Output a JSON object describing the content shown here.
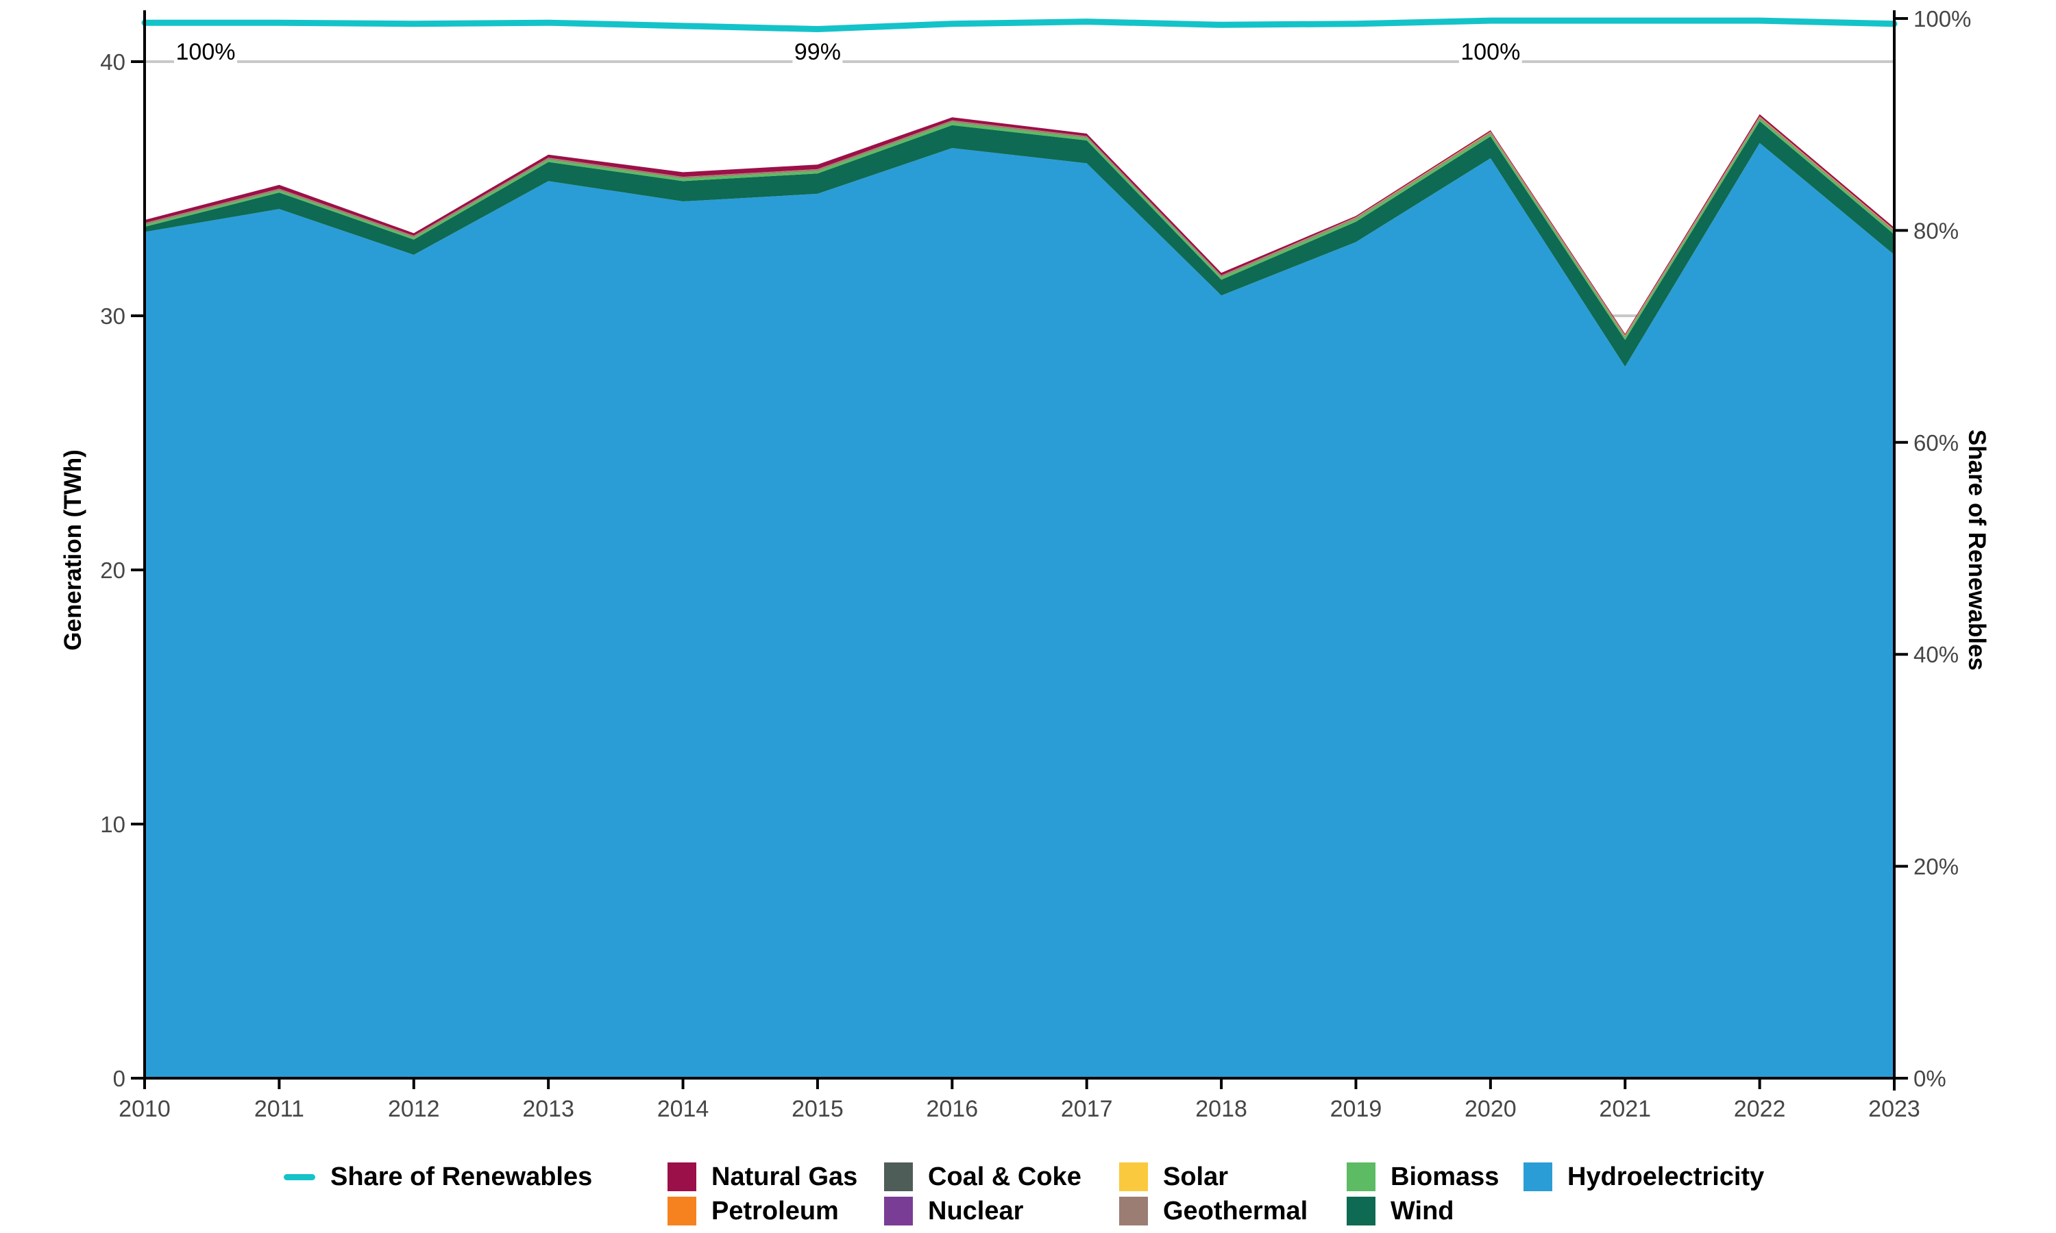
{
  "page": {
    "background": "#FFFFFF"
  },
  "axes": {
    "left_title": "Generation (TWh)",
    "right_title": "Share of Renewables",
    "left_tick_values": [
      0,
      10,
      20,
      30,
      40
    ],
    "left_tick_labels": [
      "0",
      "10",
      "20",
      "30",
      "40"
    ],
    "right_tick_values": [
      0,
      20,
      40,
      60,
      80,
      100
    ],
    "right_tick_labels": [
      "0%",
      "20%",
      "40%",
      "60%",
      "80%",
      "100%"
    ],
    "x_tick_labels": [
      "2010",
      "2011",
      "2012",
      "2013",
      "2014",
      "2015",
      "2016",
      "2017",
      "2018",
      "2019",
      "2020",
      "2021",
      "2022",
      "2023"
    ]
  },
  "colors": {
    "grid": "#C8C8C8",
    "axis": "#000000",
    "tick_text": "#464646",
    "annotation_text": "#000000",
    "annotation_bg": "#FFFFFF"
  },
  "chart_data": {
    "type": "area",
    "stacked": true,
    "title": "",
    "xlabel": "",
    "ylabel": "Generation (TWh)",
    "ylabel_right": "Share of Renewables",
    "ylim": [
      0,
      40
    ],
    "ylim_right": [
      0,
      100
    ],
    "grid": "horizontal",
    "legend_position": "bottom",
    "x": [
      2010,
      2011,
      2012,
      2013,
      2014,
      2015,
      2016,
      2017,
      2018,
      2019,
      2020,
      2021,
      2022,
      2023
    ],
    "series": [
      {
        "name": "Hydroelectricity",
        "color": "#2A9DD6",
        "values": [
          33.3,
          34.2,
          32.4,
          35.3,
          34.5,
          34.8,
          36.6,
          36.0,
          30.8,
          32.9,
          36.2,
          28.0,
          36.8,
          32.4
        ]
      },
      {
        "name": "Wind",
        "color": "#0E6A52",
        "values": [
          0.2,
          0.65,
          0.6,
          0.75,
          0.8,
          0.8,
          0.9,
          0.9,
          0.62,
          0.8,
          0.86,
          1.05,
          0.86,
          0.8
        ]
      },
      {
        "name": "Biomass",
        "color": "#5CBB63",
        "values": [
          0.08,
          0.08,
          0.08,
          0.1,
          0.1,
          0.1,
          0.12,
          0.1,
          0.1,
          0.1,
          0.1,
          0.1,
          0.1,
          0.1
        ]
      },
      {
        "name": "Geothermal",
        "color": "#9B7D74",
        "values": [
          0.05,
          0.05,
          0.05,
          0.05,
          0.05,
          0.05,
          0.05,
          0.05,
          0.05,
          0.05,
          0.05,
          0.05,
          0.05,
          0.05
        ]
      },
      {
        "name": "Solar",
        "color": "#FBC93D",
        "values": [
          0,
          0,
          0,
          0,
          0,
          0,
          0,
          0,
          0,
          0.01,
          0.01,
          0.01,
          0.01,
          0.01
        ]
      },
      {
        "name": "Nuclear",
        "color": "#7A3D96",
        "values": [
          0,
          0,
          0,
          0,
          0,
          0,
          0,
          0,
          0,
          0,
          0,
          0,
          0,
          0
        ]
      },
      {
        "name": "Coal & Coke",
        "color": "#4F5D58",
        "values": [
          0.01,
          0.01,
          0.01,
          0.01,
          0.01,
          0.01,
          0.01,
          0.01,
          0.01,
          0.01,
          0.01,
          0.01,
          0.01,
          0.01
        ]
      },
      {
        "name": "Petroleum",
        "color": "#F6821F",
        "values": [
          0.01,
          0.01,
          0.01,
          0.01,
          0.01,
          0.01,
          0.01,
          0.01,
          0.01,
          0.01,
          0.02,
          0.02,
          0.02,
          0.02
        ]
      },
      {
        "name": "Natural Gas",
        "color": "#9B1048",
        "values": [
          0.12,
          0.15,
          0.1,
          0.12,
          0.18,
          0.18,
          0.12,
          0.1,
          0.1,
          0.05,
          0.05,
          0.05,
          0.08,
          0.08
        ]
      }
    ],
    "line": {
      "name": "Share of Renewables",
      "color": "#14C3C9",
      "values": [
        99.6,
        99.6,
        99.5,
        99.6,
        99.3,
        99.0,
        99.5,
        99.7,
        99.4,
        99.5,
        99.8,
        99.8,
        99.8,
        99.5
      ]
    },
    "annotations": [
      {
        "x": 2010,
        "text": "100%"
      },
      {
        "x": 2015,
        "text": "99%"
      },
      {
        "x": 2020,
        "text": "100%"
      }
    ]
  },
  "legend": {
    "columns": [
      {
        "entries": [
          {
            "label": "Share of Renewables",
            "swatch": "line",
            "color": "#14C3C9"
          }
        ]
      },
      {
        "entries": [
          {
            "label": "Natural Gas",
            "swatch": "box",
            "color": "#9B1048"
          },
          {
            "label": "Petroleum",
            "swatch": "box",
            "color": "#F6821F"
          }
        ]
      },
      {
        "entries": [
          {
            "label": "Coal & Coke",
            "swatch": "box",
            "color": "#4F5D58"
          },
          {
            "label": "Nuclear",
            "swatch": "box",
            "color": "#7A3D96"
          }
        ]
      },
      {
        "entries": [
          {
            "label": "Solar",
            "swatch": "box",
            "color": "#FBC93D"
          },
          {
            "label": "Geothermal",
            "swatch": "box",
            "color": "#9B7D74"
          }
        ]
      },
      {
        "entries": [
          {
            "label": "Biomass",
            "swatch": "box",
            "color": "#5CBB63"
          },
          {
            "label": "Wind",
            "swatch": "box",
            "color": "#0E6A52"
          }
        ]
      },
      {
        "entries": [
          {
            "label": "Hydroelectricity",
            "swatch": "box",
            "color": "#2A9DD6"
          }
        ]
      }
    ]
  }
}
